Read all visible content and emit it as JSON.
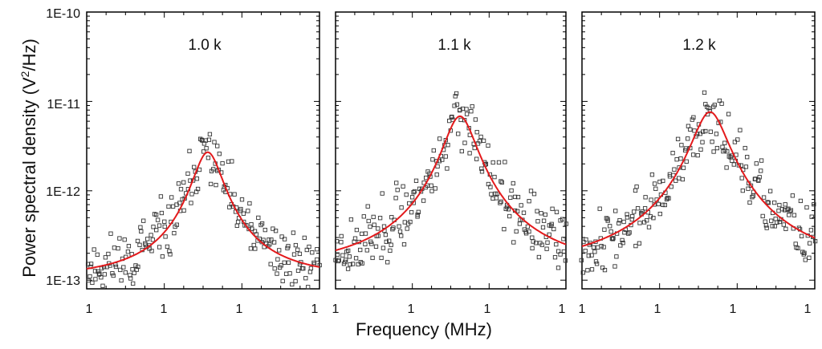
{
  "chart_data": {
    "type": "scatter",
    "ylabel_main": "Power spectral density (V",
    "ylabel_sup": "2",
    "ylabel_tail": "/Hz)",
    "xlabel": "Frequency (MHz)",
    "y_scale": "log",
    "ylim": [
      8e-14,
      1e-10
    ],
    "y_ticks": [
      {
        "value": 1e-13,
        "label": "1E-13"
      },
      {
        "value": 1e-12,
        "label": "1E-12"
      },
      {
        "value": 1e-11,
        "label": "1E-11"
      },
      {
        "value": 1e-10,
        "label": "1E-10"
      }
    ],
    "x_tick_labels": [
      "1",
      "1",
      "1",
      "1"
    ],
    "colors": {
      "data": "#333333",
      "fit": "#e31a1c"
    },
    "panels": [
      {
        "label": "1.0  k",
        "fit": {
          "background": 1e-13,
          "peak": 2.6e-12,
          "center": 0.52,
          "width": 0.06
        },
        "noise_seed": 11
      },
      {
        "label": "1.1  k",
        "fit": {
          "background": 1.2e-13,
          "peak": 6.7e-12,
          "center": 0.54,
          "width": 0.065
        },
        "noise_seed": 23
      },
      {
        "label": "1.2  k",
        "fit": {
          "background": 1.2e-13,
          "peak": 7.5e-12,
          "center": 0.55,
          "width": 0.07
        },
        "noise_seed": 37
      }
    ]
  }
}
